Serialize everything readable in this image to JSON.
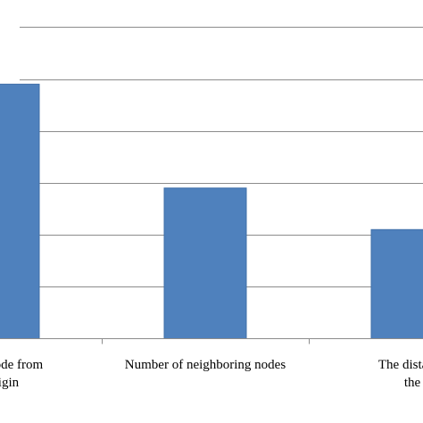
{
  "chart_data": {
    "type": "bar",
    "categories": [
      [
        "of the node from",
        "e origin"
      ],
      [
        "Number of neighboring nodes"
      ],
      [
        "The distance",
        "the"
      ]
    ],
    "values": [
      4.9,
      2.9,
      2.1
    ],
    "ylim": [
      0,
      6
    ],
    "grid": true,
    "title": "",
    "xlabel": "",
    "ylabel": "",
    "colors": {
      "bar": "#4f81bd",
      "bar_edge": "#3f6fa8",
      "grid": "#8c8c8c",
      "axis": "#8c8c8c"
    }
  }
}
